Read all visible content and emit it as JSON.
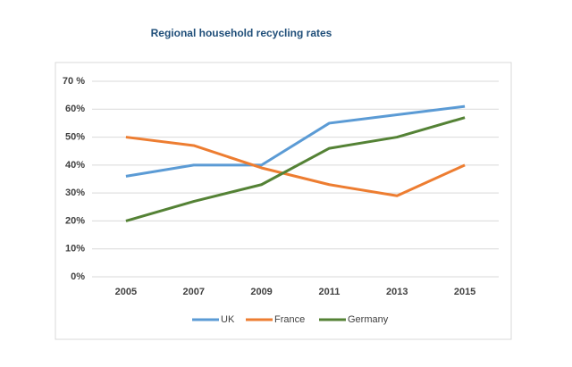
{
  "chart_data": {
    "type": "line",
    "title": "Regional household recycling rates",
    "categories": [
      "2005",
      "2007",
      "2009",
      "2011",
      "2013",
      "2015"
    ],
    "series": [
      {
        "name": "UK",
        "color": "#5b9bd5",
        "values": [
          36,
          40,
          40,
          55,
          58,
          61
        ]
      },
      {
        "name": "France",
        "color": "#ed7d31",
        "values": [
          50,
          47,
          39,
          33,
          29,
          40
        ]
      },
      {
        "name": "Germany",
        "color": "#548235",
        "values": [
          20,
          27,
          33,
          46,
          50,
          57
        ]
      }
    ],
    "ylim": [
      0,
      70
    ],
    "yticks": [
      {
        "value": 0,
        "label": "0%"
      },
      {
        "value": 10,
        "label": "10%"
      },
      {
        "value": 20,
        "label": "20%"
      },
      {
        "value": 30,
        "label": "30%"
      },
      {
        "value": 40,
        "label": "40%"
      },
      {
        "value": 50,
        "label": "50%"
      },
      {
        "value": 60,
        "label": "60%"
      },
      {
        "value": 70,
        "label": "70 %"
      }
    ],
    "grid": true,
    "legend": "bottom"
  }
}
